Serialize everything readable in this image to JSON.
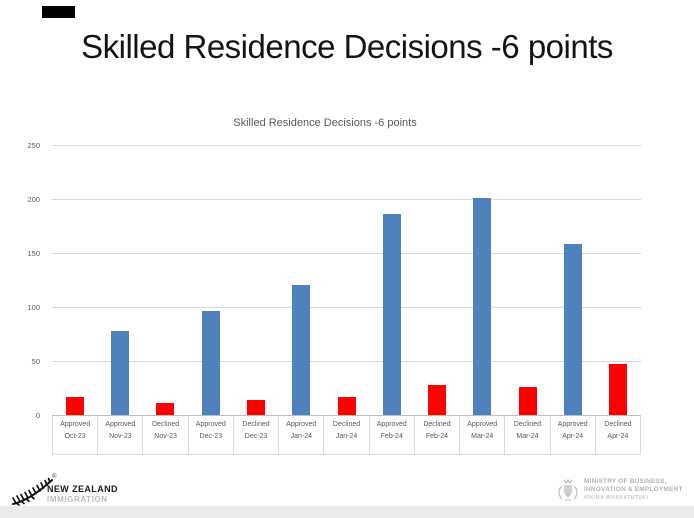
{
  "slide": {
    "title": "Skilled Residence Decisions -6 points"
  },
  "chart_data": {
    "type": "bar",
    "title": "Skilled Residence Decisions -6 points",
    "xlabel": "",
    "ylabel": "",
    "ylim": [
      0,
      250
    ],
    "yticks": [
      0,
      50,
      100,
      150,
      200,
      250
    ],
    "grid": true,
    "legend": "none",
    "categories": [
      "Approved Oct-23",
      "Approved Nov-23",
      "Declined Nov-23",
      "Approved Dec-23",
      "Declined Dec-23",
      "Approved Jan-24",
      "Declined Jan-24",
      "Approved Feb-24",
      "Declined Feb-24",
      "Approved Mar-24",
      "Declined Mar-24",
      "Approved Apr-24",
      "Declined Apr-24"
    ],
    "points": [
      {
        "status": "Approved",
        "month": "Oct-23",
        "value": 17,
        "color": "#ff0000"
      },
      {
        "status": "Approved",
        "month": "Nov-23",
        "value": 78,
        "color": "#4f81bd"
      },
      {
        "status": "Declined",
        "month": "Nov-23",
        "value": 11,
        "color": "#ff0000"
      },
      {
        "status": "Approved",
        "month": "Dec-23",
        "value": 96,
        "color": "#4f81bd"
      },
      {
        "status": "Declined",
        "month": "Dec-23",
        "value": 14,
        "color": "#ff0000"
      },
      {
        "status": "Approved",
        "month": "Jan-24",
        "value": 120,
        "color": "#4f81bd"
      },
      {
        "status": "Declined",
        "month": "Jan-24",
        "value": 17,
        "color": "#ff0000"
      },
      {
        "status": "Approved",
        "month": "Feb-24",
        "value": 186,
        "color": "#4f81bd"
      },
      {
        "status": "Declined",
        "month": "Feb-24",
        "value": 28,
        "color": "#ff0000"
      },
      {
        "status": "Approved",
        "month": "Mar-24",
        "value": 201,
        "color": "#4f81bd"
      },
      {
        "status": "Declined",
        "month": "Mar-24",
        "value": 26,
        "color": "#ff0000"
      },
      {
        "status": "Approved",
        "month": "Apr-24",
        "value": 158,
        "color": "#4f81bd"
      },
      {
        "status": "Declined",
        "month": "Apr-24",
        "value": 47,
        "color": "#ff0000"
      }
    ]
  },
  "footer": {
    "nz_logo": {
      "registered_mark": "®",
      "line1": "NEW ZEALAND",
      "line2": "IMMIGRATION"
    },
    "mbie_logo": {
      "line1": "MINISTRY OF BUSINESS,",
      "line2": "INNOVATION & EMPLOYMENT",
      "line3": "HĪKINA WHAKATUTUKI"
    }
  },
  "colors": {
    "bar_blue": "#4f81bd",
    "bar_red": "#ff0000",
    "gridline": "#d9d9d9",
    "axis_line": "#bfbfbf",
    "axis_text": "#595959",
    "chart_title_text": "#595959",
    "slide_title_text": "#141414",
    "footer_band": "#ececec"
  }
}
